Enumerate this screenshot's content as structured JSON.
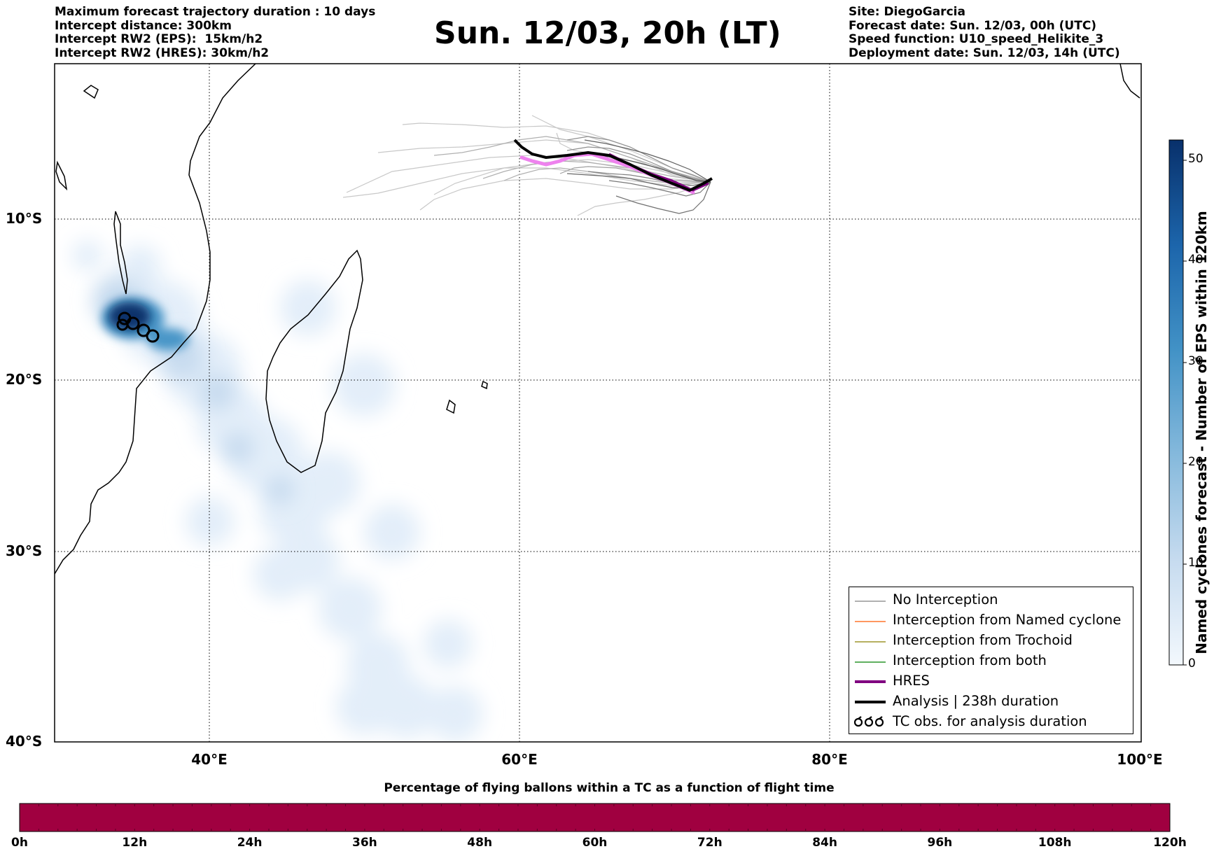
{
  "header_left": [
    "Maximum forecast trajectory duration : 10 days",
    "Intercept distance: 300km",
    "Intercept RW2 (EPS):  15km/h2",
    "Intercept RW2 (HRES): 30km/h2"
  ],
  "header_right": [
    "Site: DiegoGarcia",
    "Forecast date: Sun. 12/03, 00h (UTC)",
    "Speed function: U10_speed_Helikite_3",
    "Deployment date: Sun. 12/03, 14h (UTC)"
  ],
  "title": "Sun. 12/03, 20h (LT)",
  "map": {
    "lon_range": [
      30,
      100
    ],
    "lat_range": [
      -40,
      0
    ],
    "lat_labels": [
      {
        "label": "10°S",
        "lat": -10
      },
      {
        "label": "20°S",
        "lat": -20
      },
      {
        "label": "30°S",
        "lat": -30
      },
      {
        "label": "40°S",
        "lat": -40
      }
    ],
    "lon_labels": [
      {
        "label": "40°E",
        "lon": 40
      },
      {
        "label": "60°E",
        "lon": 60
      },
      {
        "label": "80°E",
        "lon": 80
      },
      {
        "label": "100°E",
        "lon": 100
      }
    ],
    "gridlines": "dotted"
  },
  "legend": [
    {
      "label": "No Interception",
      "color": "#808080",
      "style": "thin"
    },
    {
      "label": "Interception from Named cyclone",
      "color": "#ff5a00",
      "style": "thin"
    },
    {
      "label": "Interception from Trochoid",
      "color": "#8b8000",
      "style": "thin"
    },
    {
      "label": "Interception from both",
      "color": "#008000",
      "style": "thin"
    },
    {
      "label": "HRES",
      "color": "#800080",
      "style": "thick"
    },
    {
      "label": "Analysis | 238h duration",
      "color": "#000000",
      "style": "thick"
    },
    {
      "label": "TC obs. for analysis duration",
      "color": "#000000",
      "style": "symbol",
      "icon": "tc-symbol-icon"
    }
  ],
  "colorbar_vertical": {
    "label": "Named cyclones forecast - Number of EPS within 120km",
    "ticks": [
      "0",
      "10",
      "20",
      "30",
      "40",
      "50"
    ],
    "range": [
      0,
      52
    ],
    "colormap": "Blues"
  },
  "colorbar_horizontal": {
    "title": "Percentage of flying ballons within a TC as a function of flight time",
    "ticks": [
      "0h",
      "12h",
      "24h",
      "36h",
      "48h",
      "60h",
      "72h",
      "84h",
      "96h",
      "108h",
      "120h"
    ],
    "color": "#a00040"
  }
}
